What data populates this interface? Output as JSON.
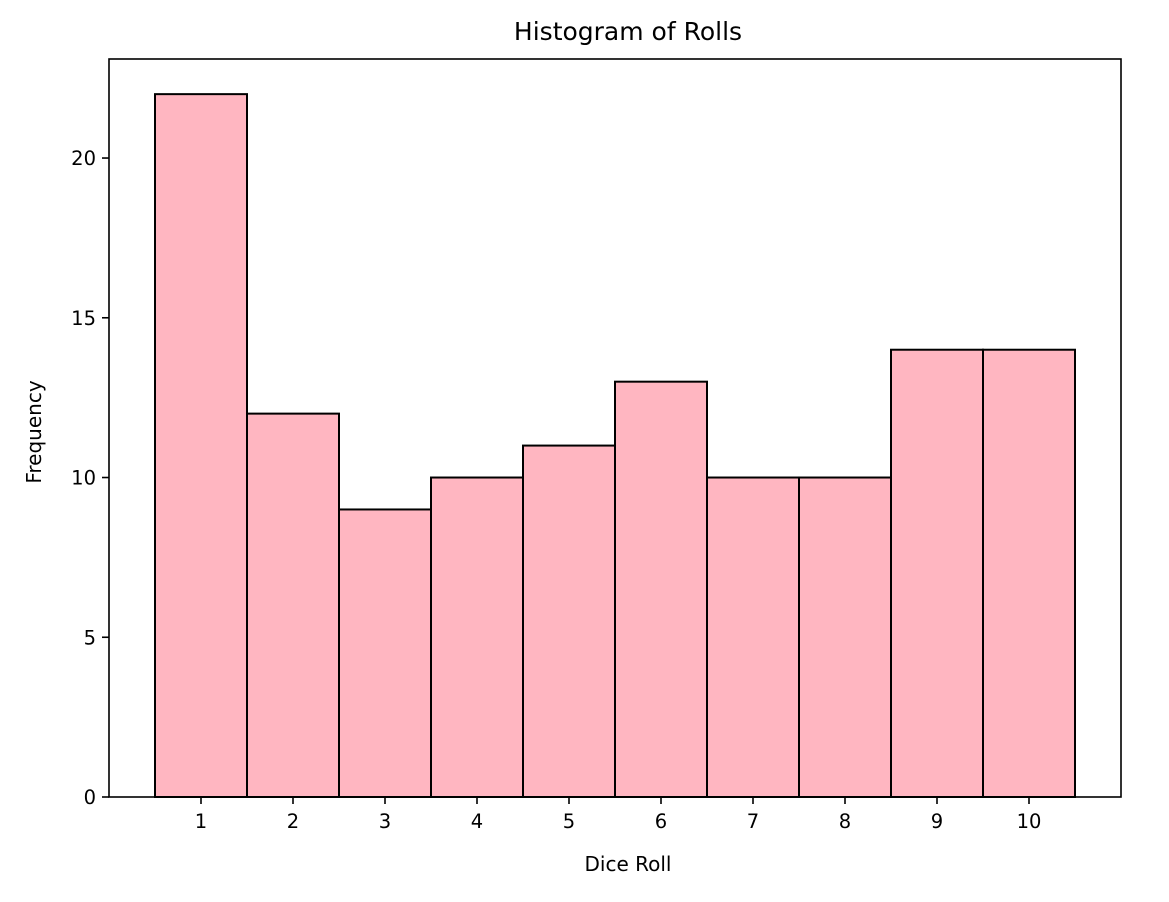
{
  "chart_data": {
    "type": "bar",
    "title": "Histogram of Rolls",
    "xlabel": "Dice Roll",
    "ylabel": "Frequency",
    "categories": [
      "1",
      "2",
      "3",
      "4",
      "5",
      "6",
      "7",
      "8",
      "9",
      "10"
    ],
    "x": [
      1,
      2,
      3,
      4,
      5,
      6,
      7,
      8,
      9,
      10
    ],
    "values": [
      22,
      12,
      9,
      10,
      11,
      13,
      10,
      10,
      14,
      14
    ],
    "bin_width": 1,
    "xlim": [
      0,
      11
    ],
    "ylim": [
      0,
      23.1
    ],
    "xticks": [
      1,
      2,
      3,
      4,
      5,
      6,
      7,
      8,
      9,
      10
    ],
    "yticks": [
      0,
      5,
      10,
      15,
      20
    ],
    "grid": false,
    "legend": "none",
    "bar_color": "#ffb6c1",
    "edge_color": "#000000"
  }
}
